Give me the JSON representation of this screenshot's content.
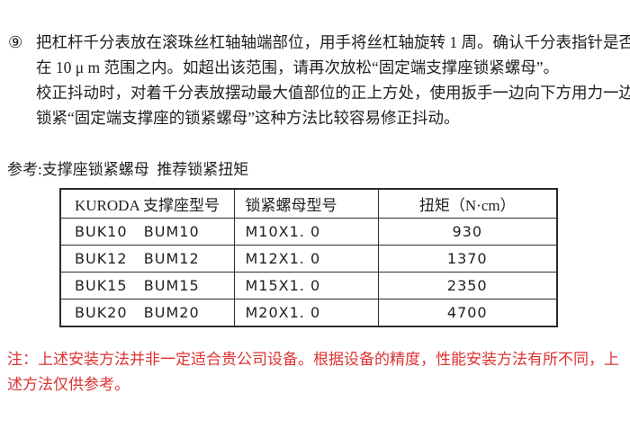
{
  "document": {
    "background": "#ffffff",
    "text_color": "#1f1f1f",
    "note_color": "#dd3333",
    "table_border_color": "#2b2b2b"
  },
  "instruction": {
    "number": "⑨",
    "lines": [
      "把杠杆千分表放在滚珠丝杠轴轴端部位，用手将丝杠轴旋转 1 周。确认千分表指针是否",
      "在 10 μ m 范围之内。如超出该范围，请再次放松“固定端支撑座锁紧螺母”。",
      "校正抖动时，对着千分表放摆动最大值部位的正上方处，使用扳手一边向下方用力一边",
      "锁紧“固定端支撑座的锁紧螺母”这种方法比较容易修正抖动。"
    ]
  },
  "reference_caption": "参考:支撑座锁紧螺母  推荐锁紧扭矩",
  "torque_table": {
    "headers": [
      "KURODA 支撑座型号",
      "锁紧螺母型号",
      "扭矩（N·cm）"
    ],
    "rows": [
      {
        "support_models": "BUK10   BUM10",
        "nut_model": "M10X1. 0",
        "torque": "930"
      },
      {
        "support_models": "BUK12   BUM12",
        "nut_model": "M12X1. 0",
        "torque": "1370"
      },
      {
        "support_models": "BUK15   BUM15",
        "nut_model": "M15X1. 0",
        "torque": "2350"
      },
      {
        "support_models": "BUK20   BUM20",
        "nut_model": "M20X1. 0",
        "torque": "4700"
      }
    ]
  },
  "note": {
    "lines": [
      "注：上述安装方法并非一定适合贵公司设备。根据设备的精度，性能安装方法有所不同，上",
      "述方法仅供参考。"
    ]
  }
}
